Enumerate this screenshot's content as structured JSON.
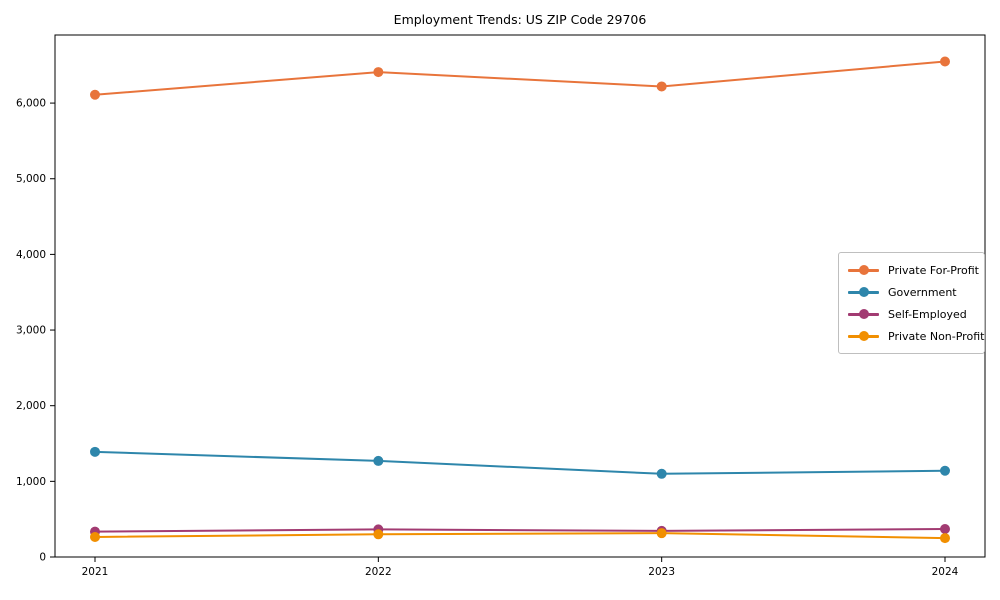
{
  "chart_data": {
    "type": "line",
    "title": "Employment Trends: US ZIP Code 29706",
    "categories": [
      "2021",
      "2022",
      "2023",
      "2024"
    ],
    "series": [
      {
        "name": "Private For-Profit",
        "color": "#E8743B",
        "values": [
          6110,
          6410,
          6220,
          6550
        ]
      },
      {
        "name": "Government",
        "color": "#2E86AB",
        "values": [
          1390,
          1270,
          1100,
          1140
        ]
      },
      {
        "name": "Self-Employed",
        "color": "#A23B72",
        "values": [
          335,
          365,
          345,
          370
        ]
      },
      {
        "name": "Private Non-Profit",
        "color": "#F18F01",
        "values": [
          265,
          300,
          315,
          250
        ]
      }
    ],
    "yticks": {
      "values": [
        0,
        1000,
        2000,
        3000,
        4000,
        5000,
        6000
      ],
      "labels": [
        "0",
        "1,000",
        "2,000",
        "3,000",
        "4,000",
        "5,000",
        "6,000"
      ]
    },
    "ylim": [
      0,
      6900
    ],
    "xlabel": "",
    "ylabel": "",
    "grid": false,
    "legend_position": "center-right",
    "axis_color": "#000000",
    "text_color": "#000000",
    "background_color": "#ffffff"
  }
}
